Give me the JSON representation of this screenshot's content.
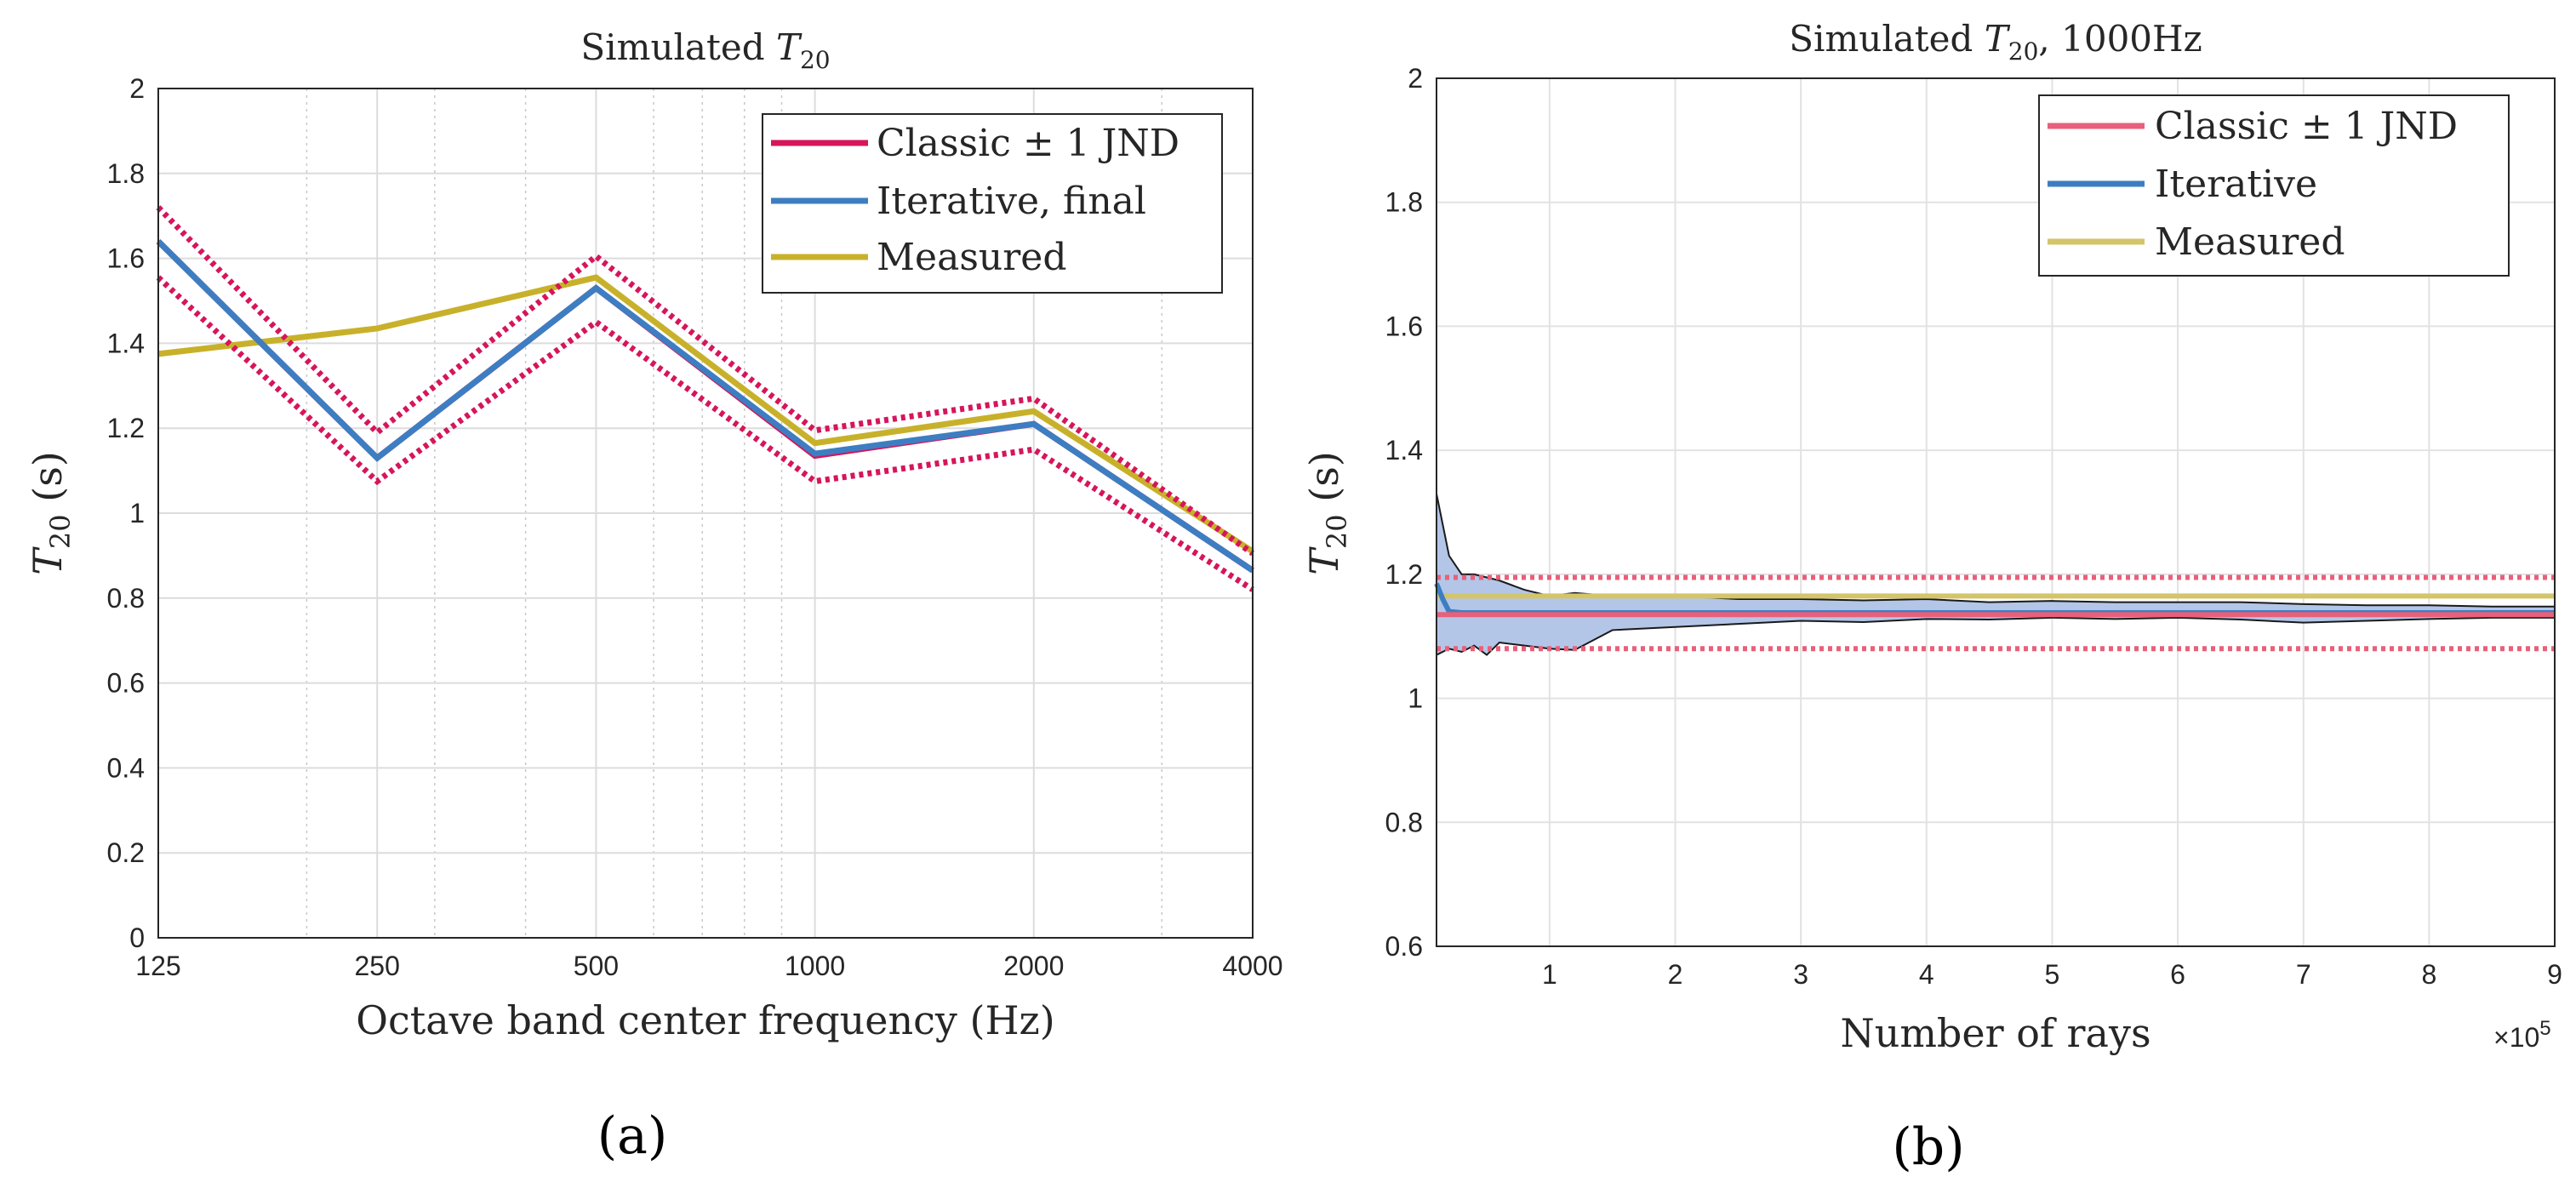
{
  "chart_data": [
    {
      "type": "line",
      "panel_label": "(a)",
      "title": "Simulated T20",
      "title_main": "Simulated ",
      "title_var": "T",
      "title_sub": "20",
      "xlabel": "Octave band center frequency (Hz)",
      "ylabel_var": "T",
      "ylabel_sub": "20",
      "ylabel_unit": " (s)",
      "xscale": "log",
      "xlim": [
        125,
        4000
      ],
      "ylim": [
        0,
        2
      ],
      "x_ticks": [
        125,
        250,
        500,
        1000,
        2000,
        4000
      ],
      "x_tick_labels": [
        "125",
        "250",
        "500",
        "1000",
        "2000",
        "4000"
      ],
      "y_ticks": [
        0,
        0.2,
        0.4,
        0.6,
        0.8,
        1,
        1.2,
        1.4,
        1.6,
        1.8,
        2
      ],
      "y_tick_labels": [
        "0",
        "0.2",
        "0.4",
        "0.6",
        "0.8",
        "1",
        "1.2",
        "1.4",
        "1.6",
        "1.8",
        "2"
      ],
      "grid": true,
      "legend_position": "top-right",
      "x": [
        125,
        250,
        500,
        1000,
        2000,
        4000
      ],
      "series": [
        {
          "name": "Classic ± 1 JND",
          "role": "classic",
          "color": "#d6155a",
          "values": [
            1.64,
            1.13,
            1.53,
            1.135,
            1.21,
            0.865
          ]
        },
        {
          "name": "Classic upper",
          "role": "jnd",
          "color": "#d6155a",
          "values": [
            1.72,
            1.19,
            1.605,
            1.195,
            1.27,
            0.905
          ]
        },
        {
          "name": "Classic lower",
          "role": "jnd",
          "color": "#d6155a",
          "values": [
            1.555,
            1.075,
            1.45,
            1.075,
            1.15,
            0.82
          ]
        },
        {
          "name": "Iterative, final",
          "role": "iterative",
          "color": "#3d7ec2",
          "values": [
            1.64,
            1.13,
            1.53,
            1.14,
            1.21,
            0.865
          ]
        },
        {
          "name": "Measured",
          "role": "measured",
          "color": "#c8b12a",
          "values": [
            1.375,
            1.435,
            1.555,
            1.165,
            1.24,
            0.91
          ]
        }
      ],
      "legend": [
        {
          "label": "Classic ± 1 JND",
          "color": "#d6155a"
        },
        {
          "label": "Iterative, final",
          "color": "#3d7ec2"
        },
        {
          "label": "Measured",
          "color": "#c8b12a"
        }
      ]
    },
    {
      "type": "line",
      "panel_label": "(b)",
      "title": "Simulated T20, 1000Hz",
      "title_main": "Simulated ",
      "title_var": "T",
      "title_sub": "20",
      "title_suffix": ", 1000Hz",
      "xlabel": "Number of rays",
      "x_multiplier": "×10",
      "x_multiplier_exp": "5",
      "ylabel_var": "T",
      "ylabel_sub": "20",
      "ylabel_unit": " (s)",
      "xlim": [
        0.1,
        9
      ],
      "ylim": [
        0.6,
        2
      ],
      "x_ticks": [
        1,
        2,
        3,
        4,
        5,
        6,
        7,
        8,
        9
      ],
      "x_tick_labels": [
        "1",
        "2",
        "3",
        "4",
        "5",
        "6",
        "7",
        "8",
        "9"
      ],
      "y_ticks": [
        0.6,
        0.8,
        1,
        1.2,
        1.4,
        1.6,
        1.8,
        2
      ],
      "y_tick_labels": [
        "0.6",
        "0.8",
        "1",
        "1.2",
        "1.4",
        "1.6",
        "1.8",
        "2"
      ],
      "grid": true,
      "legend_position": "top-right",
      "classic": {
        "value": 1.135,
        "upper": 1.195,
        "lower": 1.08,
        "color": "#e8607a"
      },
      "measured": {
        "value": 1.165,
        "color": "#d4c46a"
      },
      "iterative": {
        "color": "#3d7ec2",
        "x": [
          0.1,
          0.15,
          0.2,
          0.3,
          0.5,
          1,
          2,
          3,
          4,
          5,
          6,
          7,
          8,
          9
        ],
        "values": [
          1.185,
          1.16,
          1.14,
          1.138,
          1.138,
          1.138,
          1.138,
          1.138,
          1.138,
          1.138,
          1.138,
          1.138,
          1.138,
          1.138
        ]
      },
      "band": {
        "fill": "#b3c6e8",
        "x": [
          0.1,
          0.2,
          0.3,
          0.4,
          0.5,
          0.6,
          0.8,
          1.0,
          1.2,
          1.5,
          2,
          2.5,
          3,
          3.5,
          4,
          4.5,
          5,
          5.5,
          6,
          6.5,
          7,
          7.5,
          8,
          8.5,
          9
        ],
        "upper": [
          1.33,
          1.23,
          1.2,
          1.2,
          1.195,
          1.19,
          1.175,
          1.165,
          1.17,
          1.165,
          1.165,
          1.16,
          1.16,
          1.158,
          1.16,
          1.155,
          1.157,
          1.155,
          1.155,
          1.155,
          1.152,
          1.15,
          1.15,
          1.148,
          1.148
        ],
        "lower": [
          1.07,
          1.08,
          1.075,
          1.085,
          1.07,
          1.09,
          1.085,
          1.08,
          1.078,
          1.11,
          1.115,
          1.12,
          1.125,
          1.123,
          1.128,
          1.127,
          1.13,
          1.128,
          1.13,
          1.127,
          1.122,
          1.125,
          1.128,
          1.13,
          1.13
        ]
      },
      "legend": [
        {
          "label": "Classic ± 1 JND",
          "color": "#e8607a"
        },
        {
          "label": "Iterative",
          "color": "#3d7ec2"
        },
        {
          "label": "Measured",
          "color": "#d4c46a"
        }
      ]
    }
  ]
}
